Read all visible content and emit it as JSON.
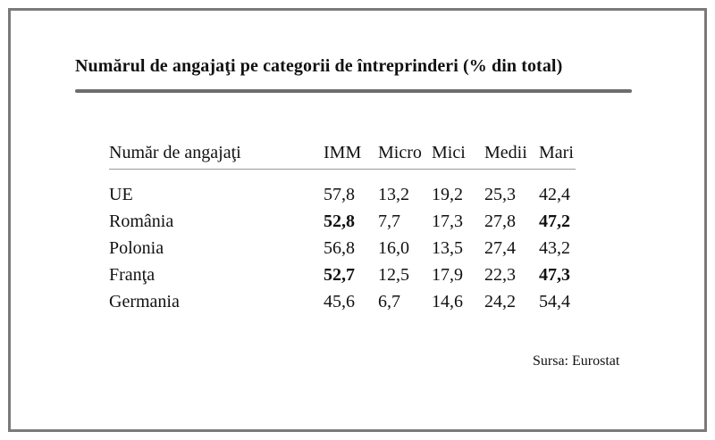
{
  "chart_data": {
    "type": "table",
    "title": "Numărul de angajaţi pe categorii de întreprinderi (% din total)",
    "columns": [
      "Număr de angajaţi",
      "IMM",
      "Micro",
      "Mici",
      "Medii",
      "Mari"
    ],
    "rows": [
      {
        "label": "UE",
        "values": [
          "57,8",
          "13,2",
          "19,2",
          "25,3",
          "42,4"
        ],
        "bold": [
          false,
          false,
          false,
          false,
          false
        ]
      },
      {
        "label": "România",
        "values": [
          "52,8",
          "7,7",
          "17,3",
          "27,8",
          "47,2"
        ],
        "bold": [
          true,
          false,
          false,
          false,
          true
        ]
      },
      {
        "label": "Polonia",
        "values": [
          "56,8",
          "16,0",
          "13,5",
          "27,4",
          "43,2"
        ],
        "bold": [
          false,
          false,
          false,
          false,
          false
        ]
      },
      {
        "label": "Franţa",
        "values": [
          "52,7",
          "12,5",
          "17,9",
          "22,3",
          "47,3"
        ],
        "bold": [
          true,
          false,
          false,
          false,
          true
        ]
      },
      {
        "label": "Germania",
        "values": [
          "45,6",
          "6,7",
          "14,6",
          "24,2",
          "54,4"
        ],
        "bold": [
          false,
          false,
          false,
          false,
          false
        ]
      }
    ],
    "source": "Sursa: Eurostat"
  }
}
